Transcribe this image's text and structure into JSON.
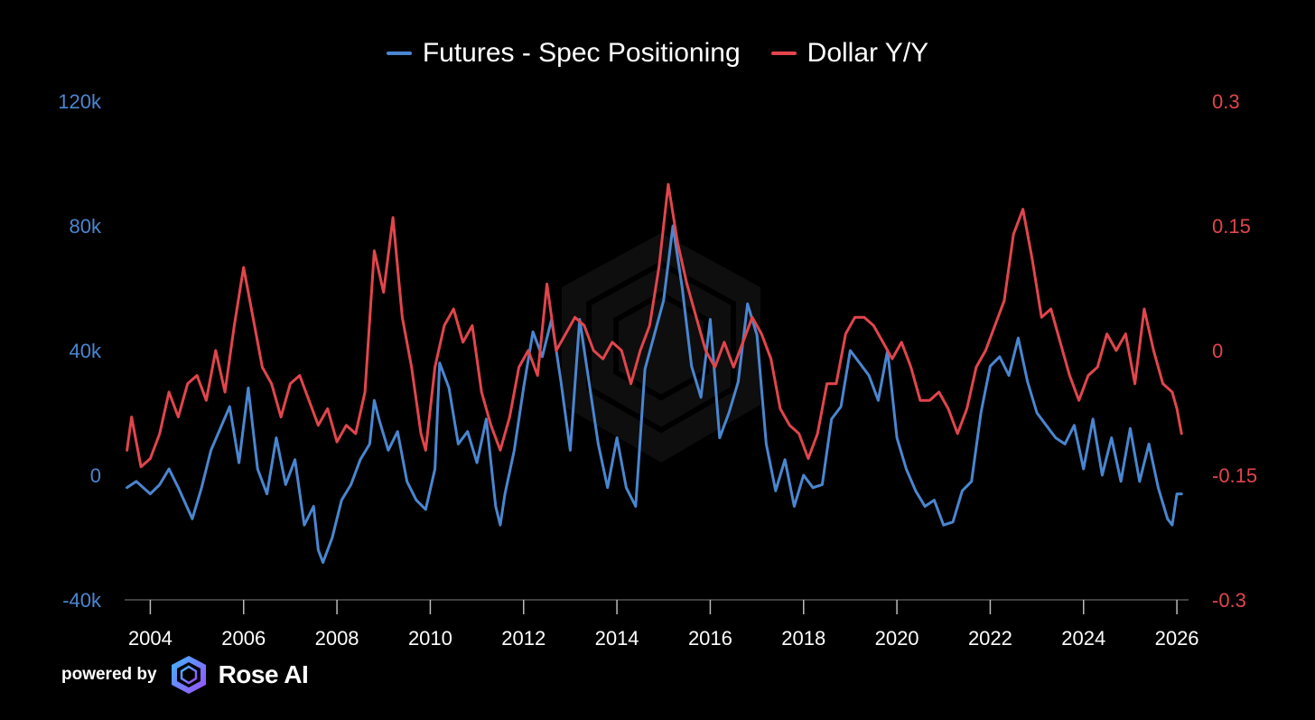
{
  "chart_data": {
    "type": "line",
    "title": "",
    "legend_position": "top-center",
    "grid": false,
    "x_ticks": [
      "2004",
      "2006",
      "2008",
      "2010",
      "2012",
      "2014",
      "2016",
      "2018",
      "2020",
      "2022",
      "2024",
      "2026"
    ],
    "xlim": [
      2003.45,
      2026.25
    ],
    "y_left": {
      "ticks": [
        "120k",
        "80k",
        "40k",
        "0",
        "-40k"
      ],
      "range": [
        -40000,
        120000
      ],
      "color": "#4a86d0"
    },
    "y_right": {
      "ticks": [
        "0.3",
        "0.15",
        "0",
        "-0.15",
        "-0.3"
      ],
      "range": [
        -0.3,
        0.3
      ],
      "color": "#e2454c"
    },
    "series": [
      {
        "name": "Futures - Spec Positioning",
        "axis": "left",
        "color": "#4a86d0",
        "x": [
          2003.5,
          2003.7,
          2004.0,
          2004.2,
          2004.4,
          2004.6,
          2004.9,
          2005.1,
          2005.3,
          2005.5,
          2005.7,
          2005.9,
          2006.1,
          2006.3,
          2006.5,
          2006.7,
          2006.9,
          2007.1,
          2007.3,
          2007.5,
          2007.6,
          2007.7,
          2007.9,
          2008.1,
          2008.3,
          2008.5,
          2008.7,
          2008.8,
          2008.9,
          2009.1,
          2009.3,
          2009.5,
          2009.7,
          2009.9,
          2010.1,
          2010.2,
          2010.4,
          2010.6,
          2010.8,
          2011.0,
          2011.2,
          2011.4,
          2011.5,
          2011.6,
          2011.8,
          2012.0,
          2012.2,
          2012.4,
          2012.6,
          2012.8,
          2013.0,
          2013.2,
          2013.4,
          2013.6,
          2013.8,
          2014.0,
          2014.2,
          2014.4,
          2014.6,
          2014.8,
          2015.0,
          2015.2,
          2015.4,
          2015.6,
          2015.8,
          2016.0,
          2016.2,
          2016.4,
          2016.6,
          2016.8,
          2017.0,
          2017.2,
          2017.4,
          2017.6,
          2017.8,
          2018.0,
          2018.2,
          2018.4,
          2018.6,
          2018.8,
          2019.0,
          2019.2,
          2019.4,
          2019.6,
          2019.8,
          2020.0,
          2020.2,
          2020.4,
          2020.6,
          2020.8,
          2021.0,
          2021.2,
          2021.4,
          2021.6,
          2021.8,
          2022.0,
          2022.2,
          2022.4,
          2022.6,
          2022.8,
          2023.0,
          2023.2,
          2023.4,
          2023.6,
          2023.8,
          2024.0,
          2024.2,
          2024.4,
          2024.6,
          2024.8,
          2025.0,
          2025.2,
          2025.4,
          2025.6,
          2025.8,
          2025.9,
          2026.0,
          2026.1
        ],
        "values": [
          -4000,
          -2000,
          -6000,
          -3000,
          2000,
          -4000,
          -14000,
          -4000,
          8000,
          15000,
          22000,
          4000,
          28000,
          2000,
          -6000,
          12000,
          -3000,
          5000,
          -16000,
          -10000,
          -24000,
          -28000,
          -20000,
          -8000,
          -3000,
          5000,
          10000,
          24000,
          18000,
          8000,
          14000,
          -2000,
          -8000,
          -11000,
          2000,
          36000,
          28000,
          10000,
          14000,
          4000,
          18000,
          -10000,
          -16000,
          -6000,
          8000,
          28000,
          46000,
          38000,
          50000,
          30000,
          8000,
          50000,
          30000,
          10000,
          -4000,
          12000,
          -4000,
          -10000,
          34000,
          45000,
          56000,
          80000,
          60000,
          35000,
          25000,
          50000,
          12000,
          20000,
          30000,
          55000,
          45000,
          10000,
          -5000,
          5000,
          -10000,
          0,
          -4000,
          -3000,
          18000,
          22000,
          40000,
          36000,
          32000,
          24000,
          40000,
          12000,
          2000,
          -5000,
          -10000,
          -8000,
          -16000,
          -15000,
          -5000,
          -2000,
          20000,
          35000,
          38000,
          32000,
          44000,
          30000,
          20000,
          16000,
          12000,
          10000,
          16000,
          2000,
          18000,
          0,
          12000,
          -2000,
          15000,
          -2000,
          10000,
          -4000,
          -14000,
          -16000,
          -6000,
          -6000
        ]
      },
      {
        "name": "Dollar Y/Y",
        "axis": "right",
        "color": "#e2454c",
        "x": [
          2003.5,
          2003.6,
          2003.8,
          2004.0,
          2004.2,
          2004.4,
          2004.6,
          2004.8,
          2005.0,
          2005.2,
          2005.4,
          2005.6,
          2005.8,
          2006.0,
          2006.2,
          2006.4,
          2006.6,
          2006.8,
          2007.0,
          2007.2,
          2007.4,
          2007.6,
          2007.8,
          2008.0,
          2008.2,
          2008.4,
          2008.6,
          2008.8,
          2009.0,
          2009.2,
          2009.4,
          2009.6,
          2009.8,
          2009.9,
          2010.1,
          2010.3,
          2010.5,
          2010.7,
          2010.9,
          2011.1,
          2011.3,
          2011.5,
          2011.7,
          2011.9,
          2012.1,
          2012.3,
          2012.5,
          2012.7,
          2012.9,
          2013.1,
          2013.3,
          2013.5,
          2013.7,
          2013.9,
          2014.1,
          2014.3,
          2014.5,
          2014.7,
          2014.9,
          2015.1,
          2015.3,
          2015.5,
          2015.7,
          2015.9,
          2016.1,
          2016.3,
          2016.5,
          2016.7,
          2016.9,
          2017.1,
          2017.3,
          2017.5,
          2017.7,
          2017.9,
          2018.1,
          2018.3,
          2018.5,
          2018.7,
          2018.9,
          2019.1,
          2019.3,
          2019.5,
          2019.7,
          2019.9,
          2020.1,
          2020.3,
          2020.5,
          2020.7,
          2020.9,
          2021.1,
          2021.3,
          2021.5,
          2021.7,
          2021.9,
          2022.1,
          2022.3,
          2022.5,
          2022.7,
          2022.9,
          2023.1,
          2023.3,
          2023.5,
          2023.7,
          2023.9,
          2024.1,
          2024.3,
          2024.5,
          2024.7,
          2024.9,
          2025.1,
          2025.3,
          2025.5,
          2025.7,
          2025.9,
          2026.0,
          2026.1
        ],
        "values": [
          -0.12,
          -0.08,
          -0.14,
          -0.13,
          -0.1,
          -0.05,
          -0.08,
          -0.04,
          -0.03,
          -0.06,
          0.0,
          -0.05,
          0.03,
          0.1,
          0.04,
          -0.02,
          -0.04,
          -0.08,
          -0.04,
          -0.03,
          -0.06,
          -0.09,
          -0.07,
          -0.11,
          -0.09,
          -0.1,
          -0.05,
          0.12,
          0.07,
          0.16,
          0.04,
          -0.02,
          -0.1,
          -0.12,
          -0.02,
          0.03,
          0.05,
          0.01,
          0.03,
          -0.05,
          -0.09,
          -0.12,
          -0.08,
          -0.02,
          0.0,
          -0.03,
          0.08,
          0.0,
          0.02,
          0.04,
          0.03,
          0.0,
          -0.01,
          0.01,
          0.0,
          -0.04,
          0.0,
          0.03,
          0.1,
          0.2,
          0.13,
          0.08,
          0.04,
          0.0,
          -0.02,
          0.01,
          -0.02,
          0.01,
          0.04,
          0.02,
          -0.01,
          -0.07,
          -0.09,
          -0.1,
          -0.13,
          -0.1,
          -0.04,
          -0.04,
          0.02,
          0.04,
          0.04,
          0.03,
          0.01,
          -0.01,
          0.01,
          -0.02,
          -0.06,
          -0.06,
          -0.05,
          -0.07,
          -0.1,
          -0.07,
          -0.02,
          0.0,
          0.03,
          0.06,
          0.14,
          0.17,
          0.11,
          0.04,
          0.05,
          0.01,
          -0.03,
          -0.06,
          -0.03,
          -0.02,
          0.02,
          0.0,
          0.02,
          -0.04,
          0.05,
          0.0,
          -0.04,
          -0.05,
          -0.07,
          -0.1
        ]
      }
    ]
  },
  "footer": {
    "powered_by": "powered by",
    "brand": "Rose AI"
  }
}
